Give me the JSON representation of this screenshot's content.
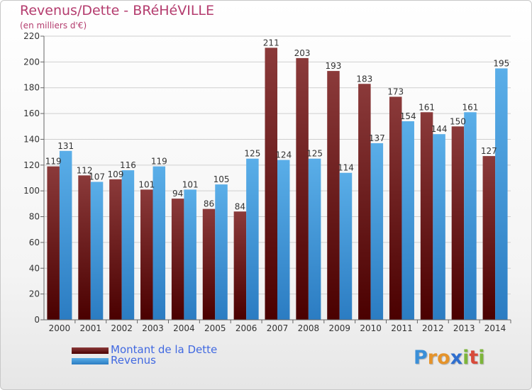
{
  "title": "Revenus/Dette - BRéHéVILLE",
  "subtitle": "(en milliers d'€)",
  "logo": {
    "text": "Proxiti",
    "letters": [
      "P",
      "r",
      "o",
      "x",
      "i",
      "t",
      "i"
    ]
  },
  "colors": {
    "dette_top": "#8b3a3a",
    "dette_bottom": "#4a0000",
    "revenus_top": "#5aaee8",
    "revenus_bottom": "#2b7cc2",
    "title": "#b43c6e",
    "legend_text": "#4169e1"
  },
  "chart_data": {
    "type": "bar",
    "categories": [
      "2000",
      "2001",
      "2002",
      "2003",
      "2004",
      "2005",
      "2006",
      "2007",
      "2008",
      "2009",
      "2010",
      "2011",
      "2012",
      "2013",
      "2014"
    ],
    "series": [
      {
        "name": "Montant de la Dette",
        "values": [
          119,
          112,
          109,
          101,
          94,
          86,
          84,
          211,
          203,
          193,
          183,
          173,
          161,
          150,
          127
        ]
      },
      {
        "name": "Revenus",
        "values": [
          131,
          107,
          116,
          119,
          101,
          105,
          125,
          124,
          125,
          114,
          137,
          154,
          144,
          161,
          195
        ]
      }
    ],
    "title": "Revenus/Dette - BRéHéVILLE",
    "ylabel": "(en milliers d'€)",
    "ylim": [
      0,
      220
    ],
    "yticks": [
      0,
      20,
      40,
      60,
      80,
      100,
      120,
      140,
      160,
      180,
      200,
      220
    ],
    "grid": true,
    "legend": "bottom-left"
  }
}
